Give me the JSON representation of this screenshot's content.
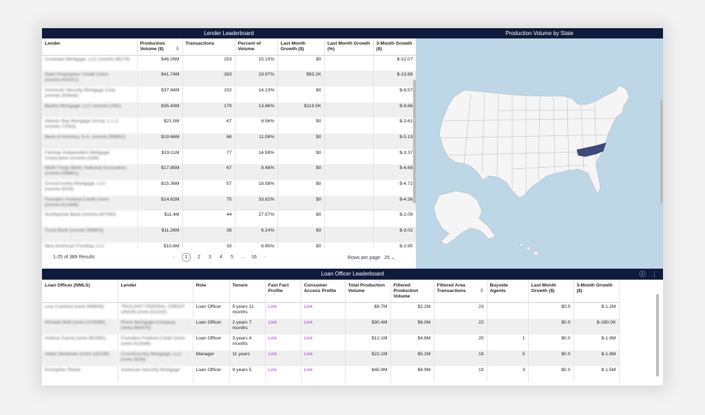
{
  "lender_leaderboard": {
    "title": "Lender Leaderboard",
    "columns": [
      "Lender",
      "Production Volume ($)",
      "Transactions",
      "Percent of Volume",
      "Last Month Growth ($)",
      "Last Month Growth (%)",
      "3-Month Growth ($)"
    ],
    "rows": [
      {
        "lender": "Covenant Mortgage, LLC (nmmls:39179)",
        "volume": "$46.26M",
        "transactions": "153",
        "percent": "15.15%",
        "lm_growth": "$0",
        "lm_growth_pct": "",
        "three_month": "$-12.07"
      },
      {
        "lender": "State Employees' Credit Union (nmmls:430221)",
        "volume": "$41.74M",
        "transactions": "283",
        "percent": "19.97%",
        "lm_growth": "$93.2K",
        "lm_growth_pct": "",
        "three_month": "$-13.68"
      },
      {
        "lender": "American Security Mortgage Corp (nmmls:303844)",
        "volume": "$37.94M",
        "transactions": "102",
        "percent": "14.13%",
        "lm_growth": "$0",
        "lm_growth_pct": "",
        "three_month": "$-8.57"
      },
      {
        "lender": "Bankst Mortgage, LLC (nmmls:1091)",
        "volume": "$35.43M",
        "transactions": "179",
        "percent": "13.86%",
        "lm_growth": "$119.5K",
        "lm_growth_pct": "",
        "three_month": "$-9.66"
      },
      {
        "lender": "Atlantic Bay Mortgage Group, L.L.C. (nmmls:72043)",
        "volume": "$21.5M",
        "transactions": "67",
        "percent": "8.56%",
        "lm_growth": "$0",
        "lm_growth_pct": "",
        "three_month": "$-3.61"
      },
      {
        "lender": "Bank of America, N.A. (nmmls:399802)",
        "volume": "$19.66M",
        "transactions": "68",
        "percent": "11.08%",
        "lm_growth": "$0",
        "lm_growth_pct": "",
        "three_month": "$-5.13"
      },
      {
        "lender": "Fairway Independent Mortgage Corporation (nmmls:2289)",
        "volume": "$19.11M",
        "transactions": "77",
        "percent": "14.59%",
        "lm_growth": "$0",
        "lm_growth_pct": "",
        "three_month": "$-3.37"
      },
      {
        "lender": "Wells Fargo Bank, National Association (nmmls:399801)",
        "volume": "$17.85M",
        "transactions": "67",
        "percent": "8.48%",
        "lm_growth": "$0",
        "lm_growth_pct": "",
        "three_month": "$-4.69"
      },
      {
        "lender": "CrossCountry Mortgage, LLC (nmmls:3029)",
        "volume": "$15.36M",
        "transactions": "57",
        "percent": "18.58%",
        "lm_growth": "$0",
        "lm_growth_pct": "",
        "three_month": "$-4.72"
      },
      {
        "lender": "Founders Federal Credit Union (nmmls:412649)",
        "volume": "$14.62M",
        "transactions": "75",
        "percent": "33.82%",
        "lm_growth": "$0",
        "lm_growth_pct": "",
        "three_month": "$-4.36"
      },
      {
        "lender": "Northpointe Bank (nmmls:447490)",
        "volume": "$11.4M",
        "transactions": "44",
        "percent": "27.57%",
        "lm_growth": "$0",
        "lm_growth_pct": "",
        "three_month": "$-2.09"
      },
      {
        "lender": "Truist Bank (nmmls:399803)",
        "volume": "$11.26M",
        "transactions": "38",
        "percent": "6.24%",
        "lm_growth": "$0",
        "lm_growth_pct": "",
        "three_month": "$-3.02"
      },
      {
        "lender": "New American Funding, LLC",
        "volume": "$10.8M",
        "transactions": "33",
        "percent": "6.90%",
        "lm_growth": "$0",
        "lm_growth_pct": "",
        "three_month": "$-2.90"
      }
    ]
  },
  "pagination": {
    "results": "1-25 of 389 Results",
    "pages": [
      "1",
      "2",
      "3",
      "4",
      "5",
      "...",
      "16"
    ],
    "prev": "‹",
    "next": "›",
    "rows_per_page_label": "Rows per page",
    "rows_per_page_value": "25 ⌄"
  },
  "production_map": {
    "title": "Production Volume by State",
    "highlighted_state": "North Carolina",
    "water_color": "#bed7e6",
    "land_color": "#f5f5f5",
    "highlight_color": "#3d4a7a"
  },
  "loan_officer_leaderboard": {
    "title": "Loan Officer Leaderboard",
    "info_icon": "ⓘ",
    "menu_icon": "⋮",
    "columns": [
      "Loan Officer (NMLS)",
      "Lender",
      "Role",
      "Tenure",
      "Fast Fact Profile",
      "Consumer Access Profile",
      "Total Production Volume",
      "Filtered Production Volume",
      "Filtered Area Transactions",
      "Buyside Agents",
      "Last Month Growth ($)",
      "3-Month Growth ($)"
    ],
    "rows": [
      {
        "officer": "Lisa Cranford (nmls:599935)",
        "lender": "TRULIANT FEDERAL CREDIT UNION (nmls:411315)",
        "role": "Loan Officer",
        "tenure": "5 years 11 months",
        "fast_fact": "Link",
        "consumer": "Link",
        "total": "$8.7M",
        "filtered": "$2.2M",
        "transactions": "23",
        "agents": "",
        "lm_growth": "$0.0",
        "three_month": "$-1.2M"
      },
      {
        "officer": "Richard Wolf (nmls:1379390)",
        "lender": "Prime Mortgage Company (nmls:969479)",
        "role": "Loan Officer",
        "tenure": "2 years 7 months",
        "fast_fact": "Link",
        "consumer": "Link",
        "total": "$30.4M",
        "filtered": "$6.0M",
        "transactions": "22",
        "agents": "",
        "lm_growth": "$0.0",
        "three_month": "$-280.0K"
      },
      {
        "officer": "Andrea Garcia (nmls:851891)",
        "lender": "Founders Federal Credit Union (nmls:412649)",
        "role": "Loan Officer",
        "tenure": "3 years 4 months",
        "fast_fact": "Link",
        "consumer": "Link",
        "total": "$12.1M",
        "filtered": "$4.8M",
        "transactions": "20",
        "agents": "1",
        "lm_growth": "$0.0",
        "three_month": "$-1.9M"
      },
      {
        "officer": "Adam Workman (nmls:126195)",
        "lender": "CrossCountry Mortgage, LLC (nmls:3029)",
        "role": "Manager",
        "tenure": "11 years",
        "fast_fact": "Link",
        "consumer": "Link",
        "total": "$22.1M",
        "filtered": "$5.2M",
        "transactions": "19",
        "agents": "5",
        "lm_growth": "$0.0",
        "three_month": "$-1.8M"
      },
      {
        "officer": "Kristopher Steele",
        "lender": "American Security Mortgage",
        "role": "Loan Officer",
        "tenure": "9 years 5",
        "fast_fact": "Link",
        "consumer": "Link",
        "total": "$45.9M",
        "filtered": "$6.9M",
        "transactions": "19",
        "agents": "3",
        "lm_growth": "$0.0",
        "three_month": "$-1.5M"
      }
    ]
  }
}
